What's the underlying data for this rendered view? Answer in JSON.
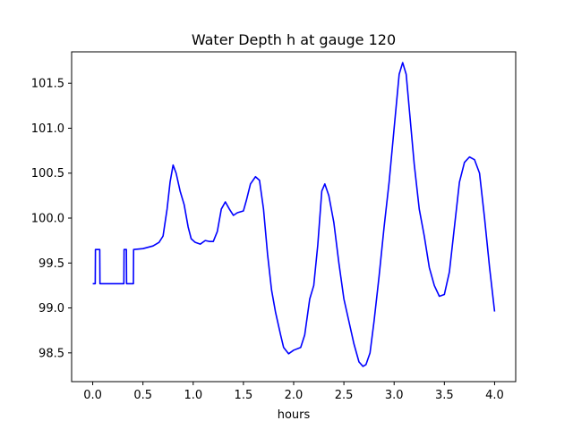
{
  "chart_data": {
    "type": "line",
    "title": "Water Depth h at gauge 120",
    "xlabel": "hours",
    "ylabel": "",
    "xlim": [
      -0.21,
      4.21
    ],
    "ylim": [
      98.18,
      101.85
    ],
    "grid": false,
    "x_ticks": [
      0.0,
      0.5,
      1.0,
      1.5,
      2.0,
      2.5,
      3.0,
      3.5,
      4.0
    ],
    "x_tick_labels": [
      "0.0",
      "0.5",
      "1.0",
      "1.5",
      "2.0",
      "2.5",
      "3.0",
      "3.5",
      "4.0"
    ],
    "y_ticks": [
      98.5,
      99.0,
      99.5,
      100.0,
      100.5,
      101.0,
      101.5
    ],
    "y_tick_labels": [
      "98.5",
      "99.0",
      "99.5",
      "100.0",
      "100.5",
      "101.0",
      "101.5"
    ],
    "series": [
      {
        "color": "#0000ff",
        "points": [
          [
            0.0,
            99.27
          ],
          [
            0.025,
            99.27
          ],
          [
            0.027,
            99.65
          ],
          [
            0.07,
            99.65
          ],
          [
            0.072,
            99.27
          ],
          [
            0.2,
            99.27
          ],
          [
            0.31,
            99.27
          ],
          [
            0.312,
            99.65
          ],
          [
            0.335,
            99.65
          ],
          [
            0.337,
            99.27
          ],
          [
            0.405,
            99.27
          ],
          [
            0.407,
            99.65
          ],
          [
            0.5,
            99.66
          ],
          [
            0.6,
            99.69
          ],
          [
            0.66,
            99.73
          ],
          [
            0.7,
            99.8
          ],
          [
            0.74,
            100.1
          ],
          [
            0.77,
            100.4
          ],
          [
            0.8,
            100.59
          ],
          [
            0.83,
            100.5
          ],
          [
            0.87,
            100.3
          ],
          [
            0.91,
            100.15
          ],
          [
            0.95,
            99.9
          ],
          [
            0.98,
            99.77
          ],
          [
            1.02,
            99.73
          ],
          [
            1.07,
            99.71
          ],
          [
            1.12,
            99.75
          ],
          [
            1.16,
            99.74
          ],
          [
            1.2,
            99.74
          ],
          [
            1.24,
            99.85
          ],
          [
            1.28,
            100.1
          ],
          [
            1.32,
            100.18
          ],
          [
            1.36,
            100.1
          ],
          [
            1.4,
            100.03
          ],
          [
            1.44,
            100.06
          ],
          [
            1.5,
            100.08
          ],
          [
            1.53,
            100.2
          ],
          [
            1.57,
            100.38
          ],
          [
            1.62,
            100.46
          ],
          [
            1.66,
            100.42
          ],
          [
            1.7,
            100.1
          ],
          [
            1.74,
            99.6
          ],
          [
            1.78,
            99.2
          ],
          [
            1.82,
            98.95
          ],
          [
            1.87,
            98.7
          ],
          [
            1.9,
            98.56
          ],
          [
            1.95,
            98.49
          ],
          [
            2.0,
            98.53
          ],
          [
            2.07,
            98.56
          ],
          [
            2.11,
            98.7
          ],
          [
            2.16,
            99.1
          ],
          [
            2.2,
            99.25
          ],
          [
            2.24,
            99.7
          ],
          [
            2.28,
            100.3
          ],
          [
            2.31,
            100.38
          ],
          [
            2.35,
            100.25
          ],
          [
            2.4,
            99.95
          ],
          [
            2.45,
            99.5
          ],
          [
            2.5,
            99.1
          ],
          [
            2.55,
            98.85
          ],
          [
            2.6,
            98.6
          ],
          [
            2.65,
            98.4
          ],
          [
            2.69,
            98.35
          ],
          [
            2.72,
            98.37
          ],
          [
            2.76,
            98.5
          ],
          [
            2.8,
            98.85
          ],
          [
            2.85,
            99.35
          ],
          [
            2.9,
            99.9
          ],
          [
            2.95,
            100.4
          ],
          [
            3.0,
            101.0
          ],
          [
            3.05,
            101.6
          ],
          [
            3.085,
            101.73
          ],
          [
            3.12,
            101.6
          ],
          [
            3.16,
            101.1
          ],
          [
            3.2,
            100.6
          ],
          [
            3.25,
            100.1
          ],
          [
            3.3,
            99.8
          ],
          [
            3.35,
            99.45
          ],
          [
            3.4,
            99.25
          ],
          [
            3.45,
            99.13
          ],
          [
            3.5,
            99.15
          ],
          [
            3.55,
            99.4
          ],
          [
            3.6,
            99.9
          ],
          [
            3.65,
            100.4
          ],
          [
            3.7,
            100.62
          ],
          [
            3.75,
            100.68
          ],
          [
            3.8,
            100.65
          ],
          [
            3.85,
            100.5
          ],
          [
            3.9,
            100.0
          ],
          [
            3.95,
            99.45
          ],
          [
            4.0,
            98.96
          ]
        ]
      }
    ]
  }
}
